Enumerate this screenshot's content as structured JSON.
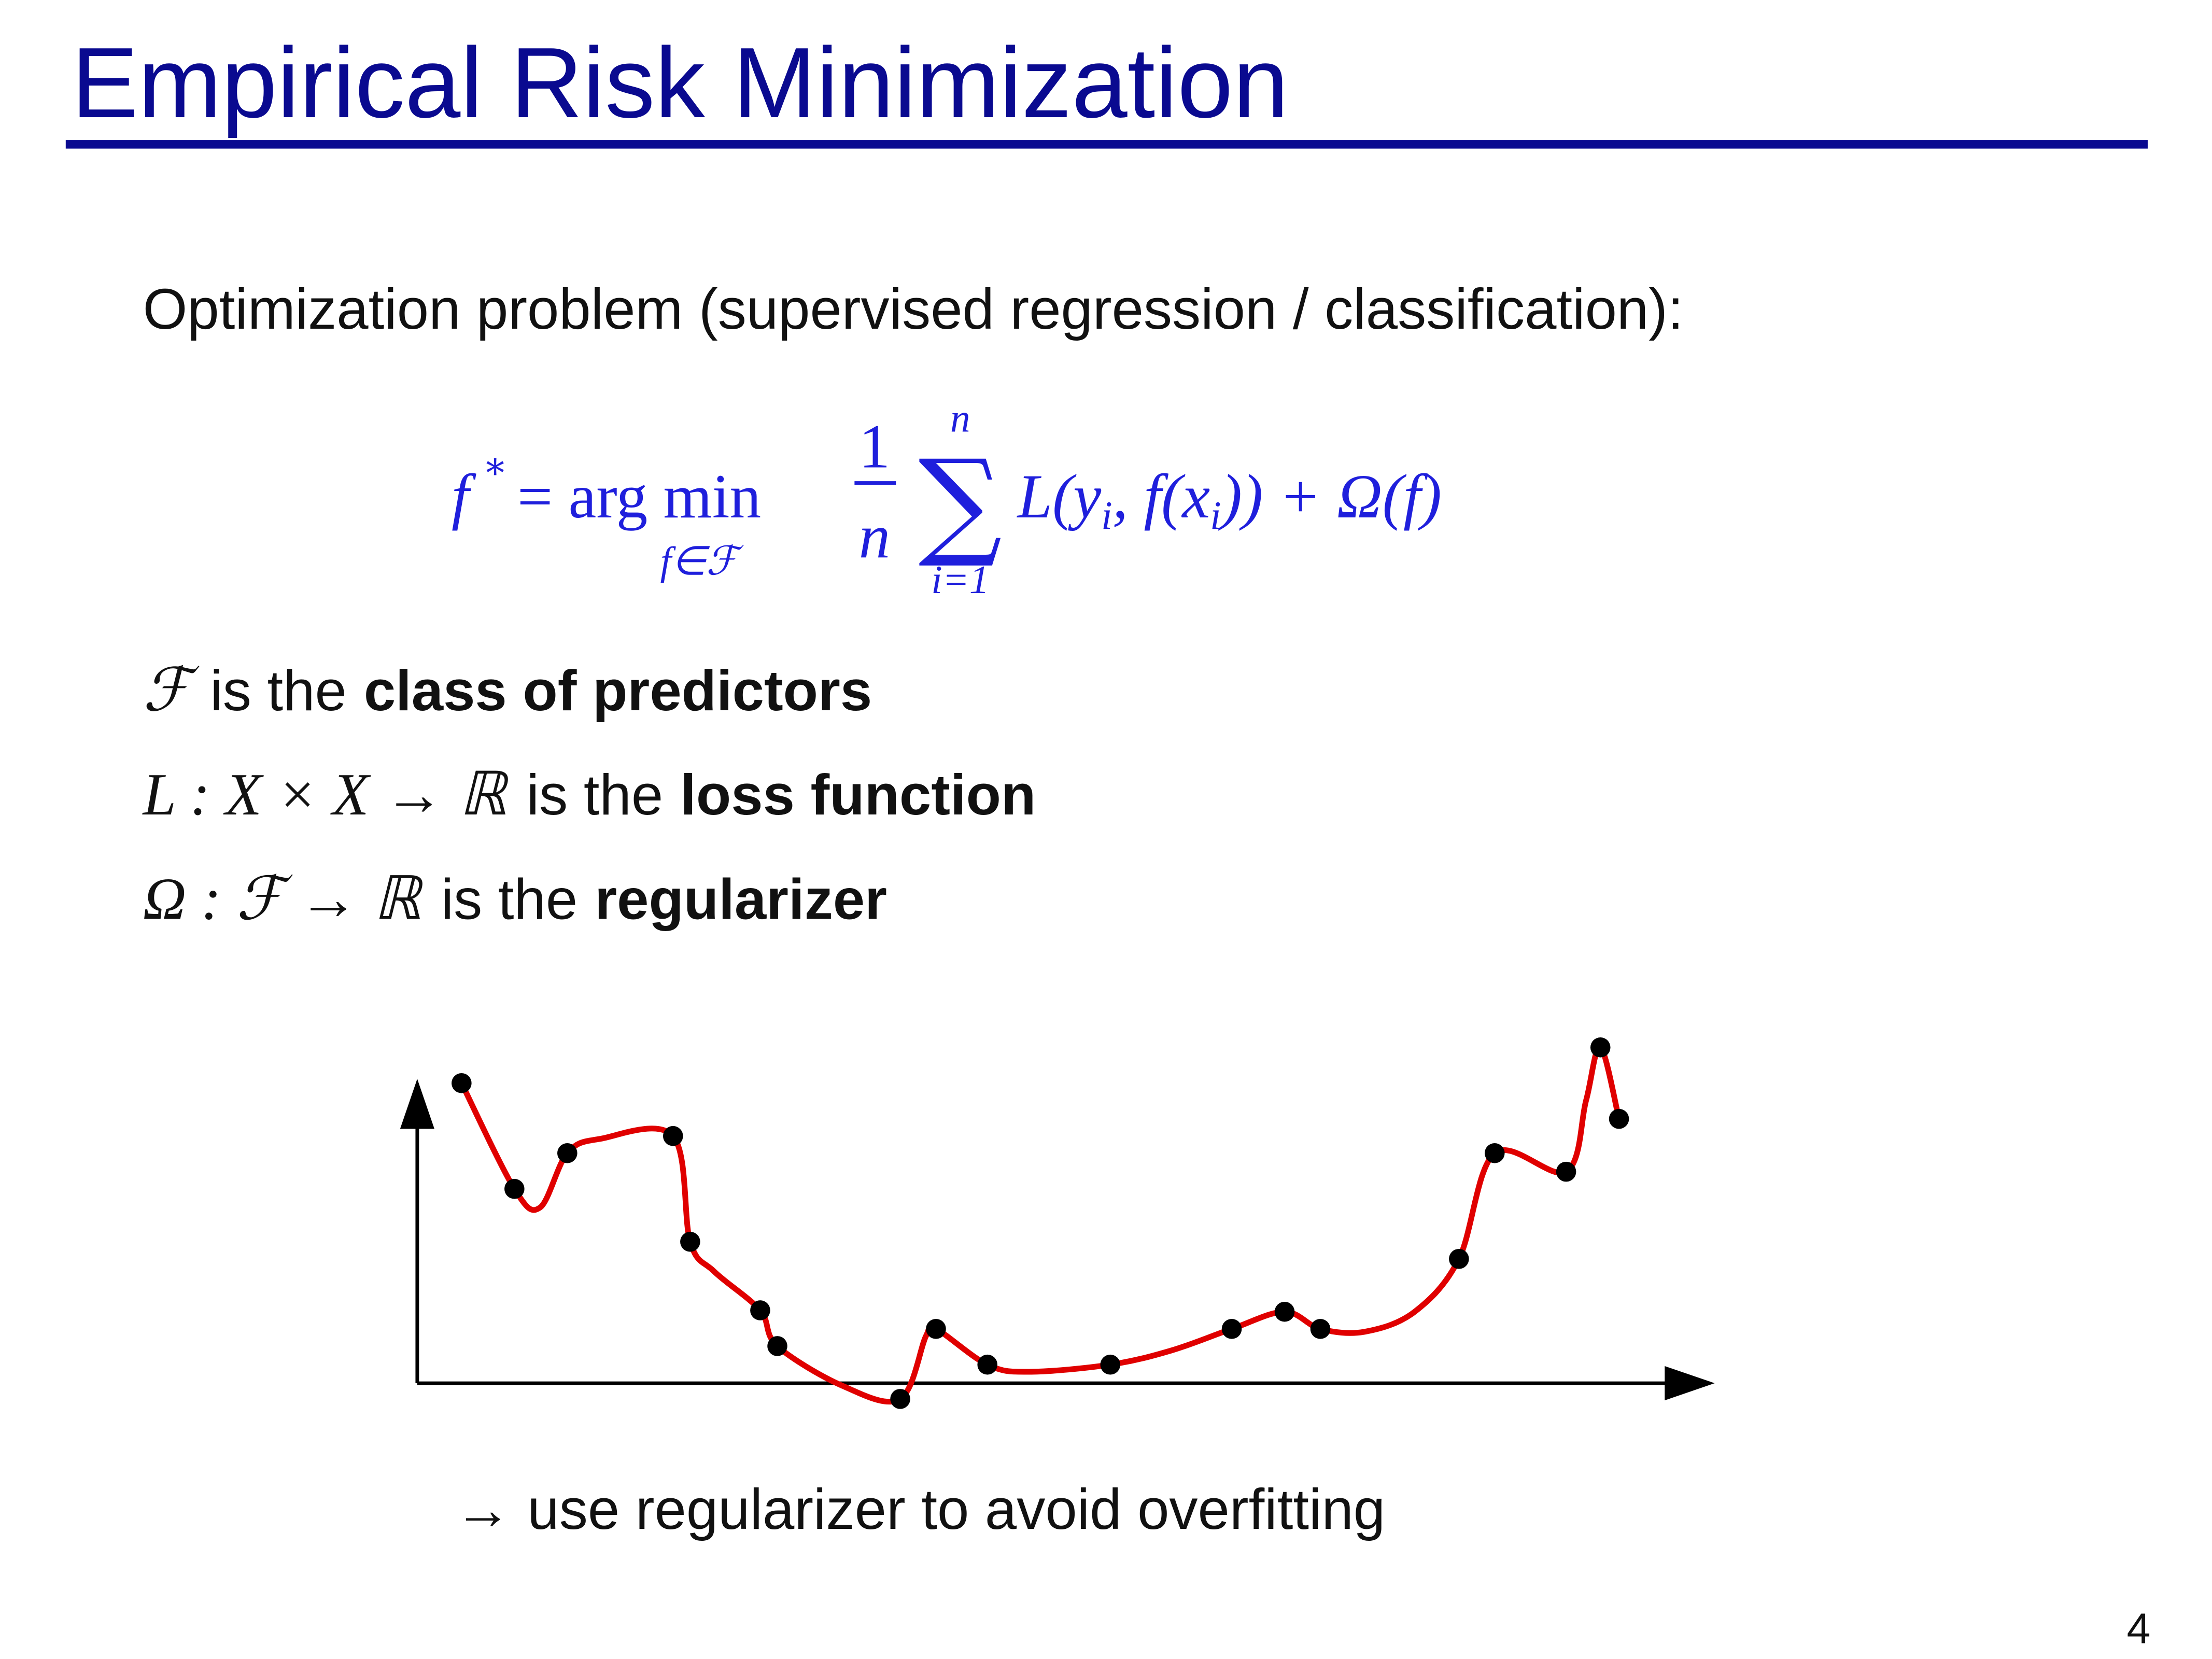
{
  "header": {
    "title": "Empirical Risk Minimization"
  },
  "intro": "Optimization problem (supervised regression / classification):",
  "formula": {
    "lhs": "f",
    "star": "*",
    "op": "= arg min",
    "under": "f∈ℱ",
    "frac_num": "1",
    "frac_den": "n",
    "sum": "∑",
    "sum_top": "n",
    "sum_bottom": "i=1",
    "loss_a": "L(y",
    "loss_sub1": "i",
    "loss_b": ", f(x",
    "loss_sub2": "i",
    "loss_c": ")) + Ω(f)"
  },
  "definitions": [
    {
      "math": "ℱ",
      "text": "is the",
      "bold": "class of predictors"
    },
    {
      "math": "L : X × X → ℝ",
      "text": "is the",
      "bold": "loss function"
    },
    {
      "math": "Ω : ℱ → ℝ",
      "text": "is the",
      "bold": "regularizer"
    }
  ],
  "caption": "→ use regularizer to avoid overfitting",
  "page_number": "4"
}
